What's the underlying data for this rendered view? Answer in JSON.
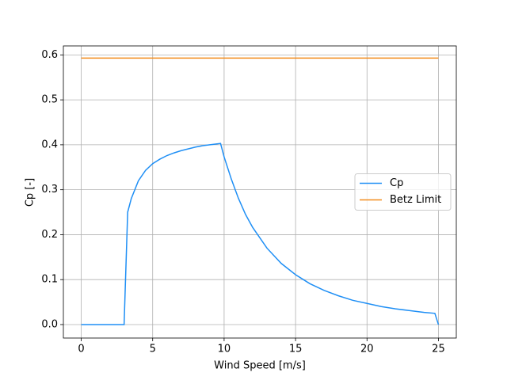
{
  "chart_data": {
    "type": "line",
    "xlabel": "Wind Speed [m/s]",
    "ylabel": "Cp [-]",
    "xlim": [
      -1.25,
      26.25
    ],
    "ylim": [
      -0.03,
      0.62
    ],
    "xticks": [
      0,
      5,
      10,
      15,
      20,
      25
    ],
    "yticks": [
      {
        "value": 0,
        "label": "0.0"
      },
      {
        "value": 0.1,
        "label": "0.1"
      },
      {
        "value": 0.2,
        "label": "0.2"
      },
      {
        "value": 0.3,
        "label": "0.3"
      },
      {
        "value": 0.4,
        "label": "0.4"
      },
      {
        "value": 0.5,
        "label": "0.5"
      },
      {
        "value": 0.6,
        "label": "0.6"
      }
    ],
    "grid": true,
    "legend": "center right",
    "series": [
      {
        "name": "Cp",
        "color": "#1f8ff5",
        "x": [
          0,
          1,
          2,
          3,
          3.25,
          3.5,
          4,
          4.5,
          5,
          5.5,
          6,
          6.5,
          7,
          7.5,
          8,
          8.5,
          9,
          9.5,
          9.75,
          10,
          10.5,
          11,
          11.5,
          12,
          13,
          14,
          15,
          16,
          17,
          18,
          19,
          20,
          21,
          22,
          23,
          24,
          24.75,
          25
        ],
        "values": [
          0,
          0,
          0,
          0,
          0.25,
          0.28,
          0.32,
          0.343,
          0.358,
          0.368,
          0.376,
          0.382,
          0.387,
          0.391,
          0.395,
          0.398,
          0.4,
          0.402,
          0.403,
          0.373,
          0.324,
          0.281,
          0.245,
          0.216,
          0.17,
          0.136,
          0.111,
          0.091,
          0.076,
          0.064,
          0.054,
          0.047,
          0.04,
          0.035,
          0.031,
          0.027,
          0.025,
          0
        ]
      },
      {
        "name": "Betz Limit",
        "color": "#f28c1c",
        "x": [
          0,
          25
        ],
        "values": [
          0.593,
          0.593
        ]
      }
    ]
  }
}
